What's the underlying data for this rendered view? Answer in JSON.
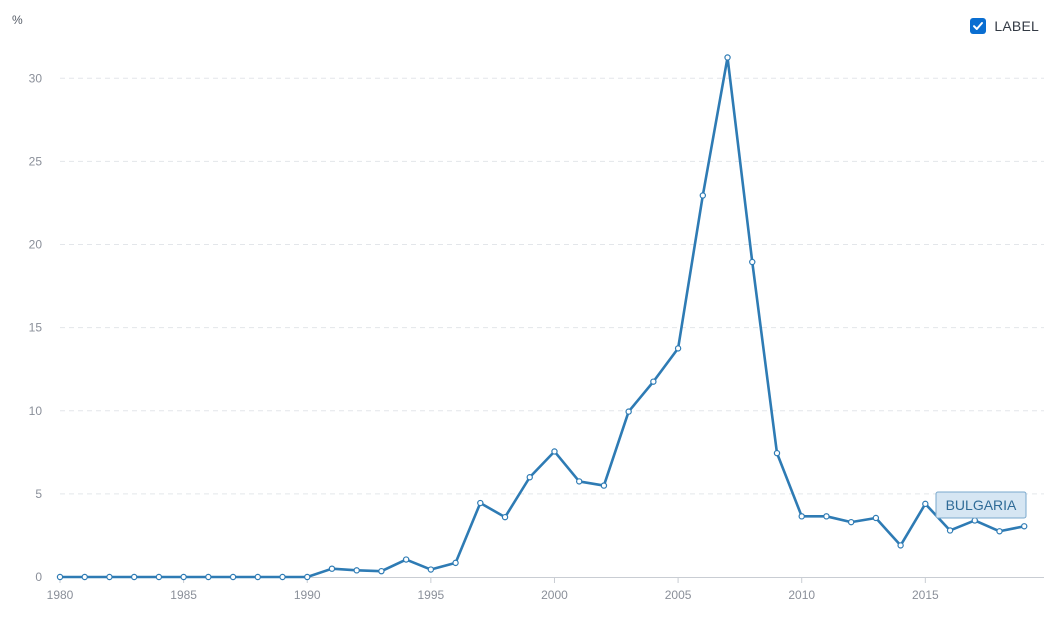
{
  "chart_data": {
    "type": "line",
    "unit_label": "%",
    "x": [
      1980,
      1981,
      1982,
      1983,
      1984,
      1985,
      1986,
      1987,
      1988,
      1989,
      1990,
      1991,
      1992,
      1993,
      1994,
      1995,
      1996,
      1997,
      1998,
      1999,
      2000,
      2001,
      2002,
      2003,
      2004,
      2005,
      2006,
      2007,
      2008,
      2009,
      2010,
      2011,
      2012,
      2013,
      2014,
      2015,
      2016,
      2017,
      2018,
      2019
    ],
    "x_ticks": [
      "1980",
      "1985",
      "1990",
      "1995",
      "2000",
      "2005",
      "2010",
      "2015"
    ],
    "y_ticks": [
      "0",
      "5",
      "10",
      "15",
      "20",
      "25",
      "30"
    ],
    "ylim": [
      0,
      32
    ],
    "xlim": [
      1980,
      2019.8
    ],
    "grid": "horizontal-dashed",
    "series": [
      {
        "name": "BULGARIA",
        "color": "#2e7bb4",
        "values": [
          0,
          0,
          0,
          0,
          0,
          0,
          0,
          0,
          0,
          0,
          0,
          0.5,
          0.4,
          0.35,
          1.05,
          0.45,
          0.85,
          4.45,
          3.6,
          6.0,
          7.55,
          5.75,
          5.5,
          9.95,
          11.75,
          13.75,
          22.95,
          31.25,
          18.95,
          7.45,
          3.65,
          3.65,
          3.3,
          3.55,
          1.9,
          4.4,
          2.8,
          3.4,
          2.75,
          3.05
        ]
      }
    ],
    "series_tag": "BULGARIA",
    "legend": {
      "label": "LABEL",
      "checked": true,
      "position": "top-right"
    }
  }
}
